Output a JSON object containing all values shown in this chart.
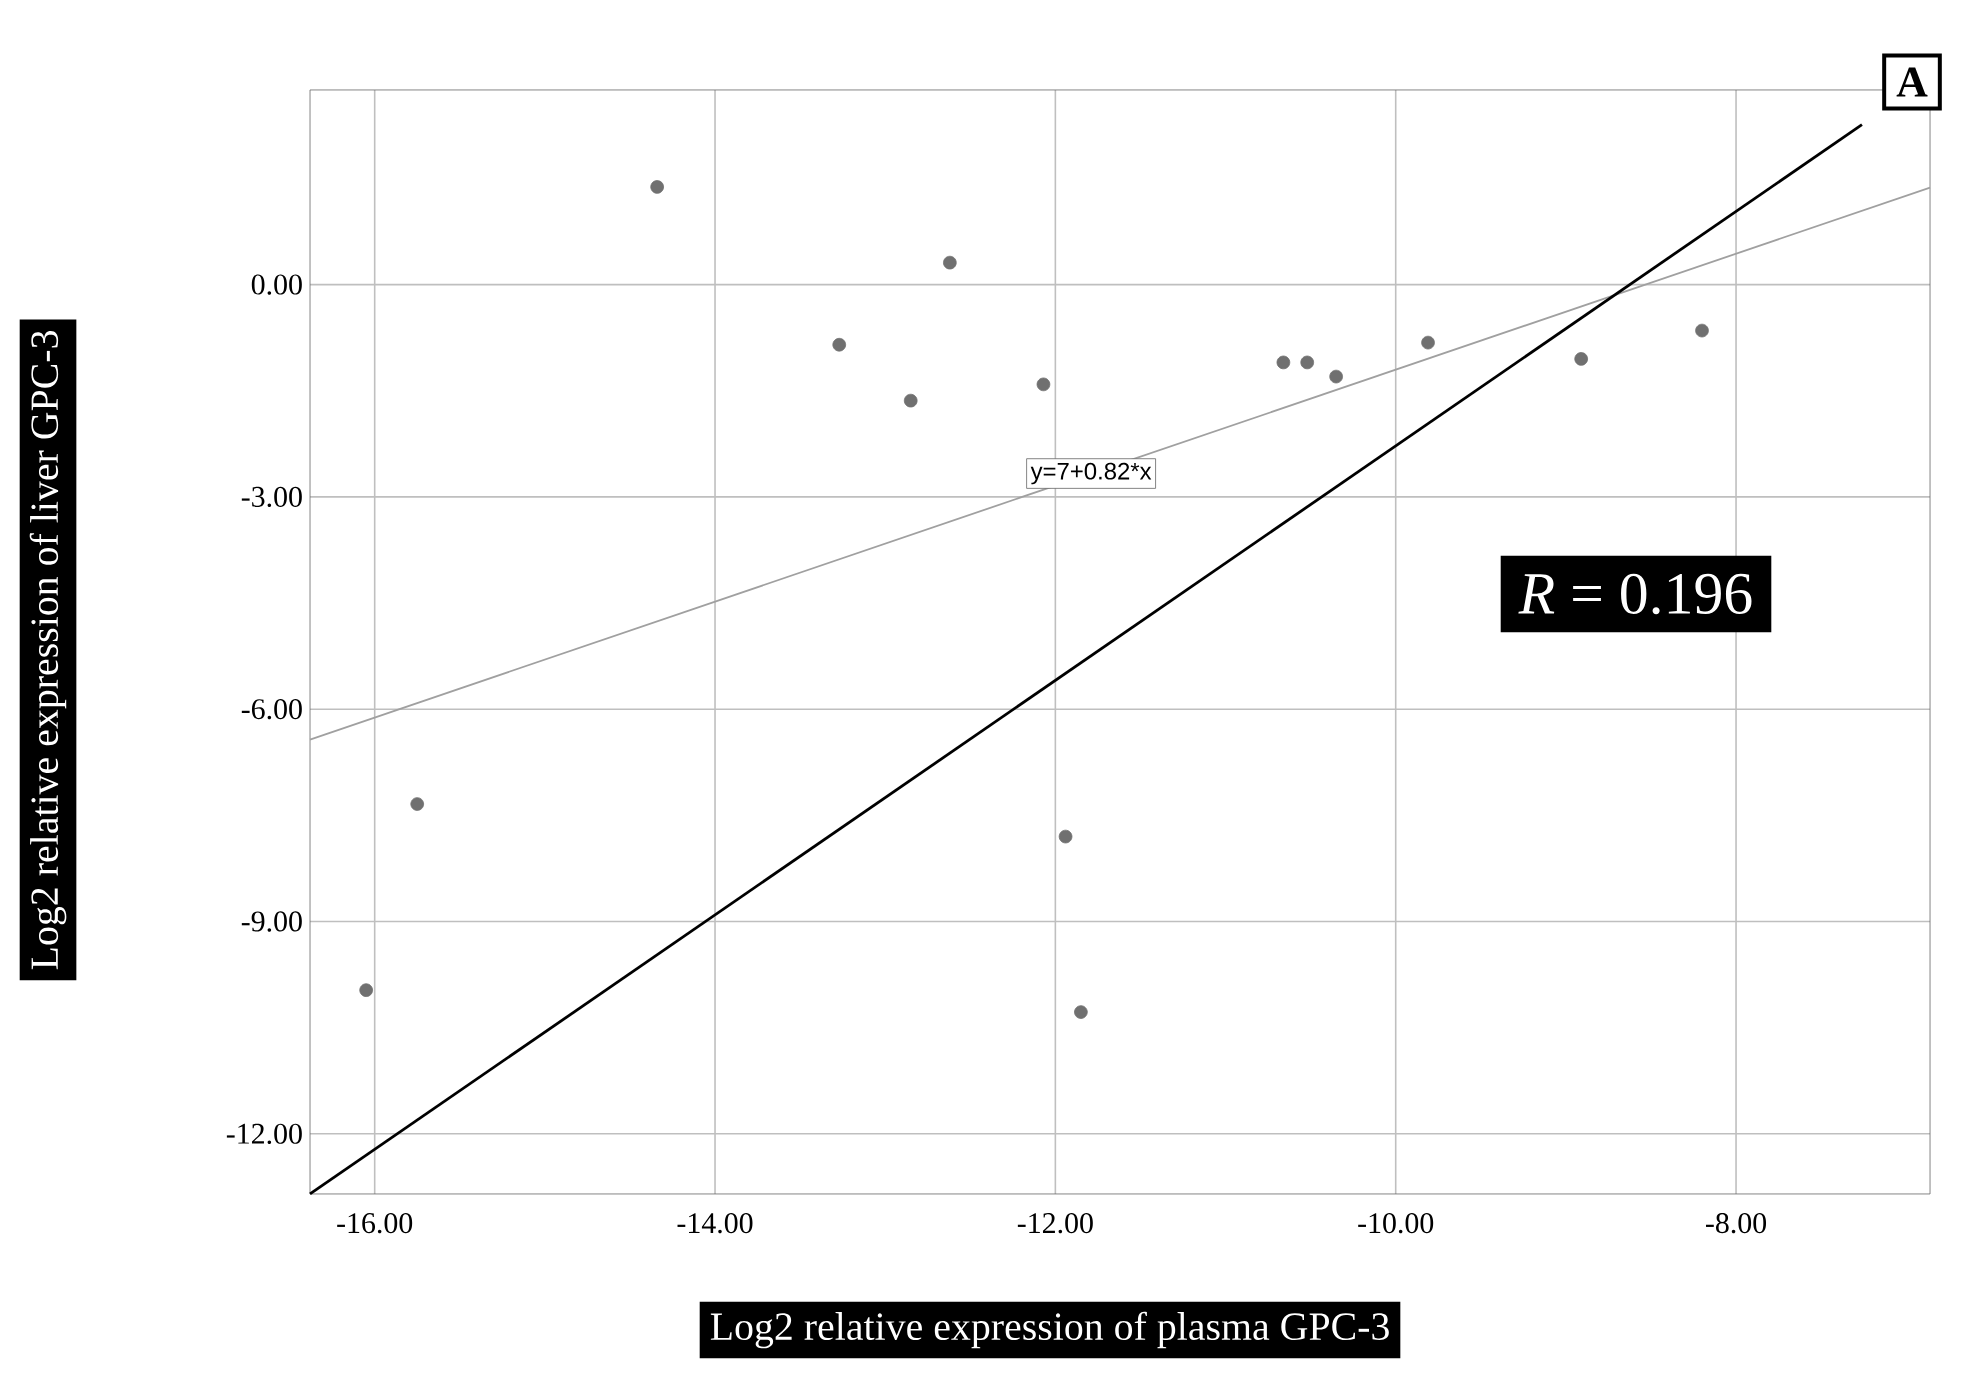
{
  "chart_data": {
    "type": "scatter",
    "xlabel": "Log2 relative expression of plasma GPC-3",
    "ylabel": "Log2 relative expression of liver GPC-3",
    "xlim": [
      -16.38,
      -6.86
    ],
    "ylim": [
      -12.85,
      2.75
    ],
    "xticks": [
      {
        "value": -16,
        "label": "-16.00"
      },
      {
        "value": -14,
        "label": "-14.00"
      },
      {
        "value": -12,
        "label": "-12.00"
      },
      {
        "value": -10,
        "label": "-10.00"
      },
      {
        "value": -8,
        "label": "-8.00"
      }
    ],
    "yticks": [
      {
        "value": -12,
        "label": "-12.00"
      },
      {
        "value": -9,
        "label": "-9.00"
      },
      {
        "value": -6,
        "label": "-6.00"
      },
      {
        "value": -3,
        "label": "-3.00"
      },
      {
        "value": 0,
        "label": "0.00"
      }
    ],
    "grid": true,
    "series": [
      {
        "marker": "circle",
        "color": "#707070",
        "x": [
          -14.34,
          -12.62,
          -13.27,
          -12.85,
          -12.07,
          -10.66,
          -10.52,
          -10.35,
          -9.81,
          -8.91,
          -8.2,
          -15.75,
          -16.05,
          -11.94,
          -11.85
        ],
        "values": [
          1.38,
          0.31,
          -0.85,
          -1.64,
          -1.41,
          -1.1,
          -1.1,
          -1.3,
          -0.82,
          -1.05,
          -0.65,
          -7.34,
          -9.97,
          -7.8,
          -10.28
        ]
      },
      {
        "type": "line",
        "marker": "none",
        "color": "#a0a0a0",
        "x": [
          -16.38,
          -6.86
        ],
        "values": [
          -6.43,
          1.37
        ]
      },
      {
        "type": "line",
        "marker": "none",
        "color": "#000000",
        "x": [
          -16.38,
          -7.26
        ],
        "values": [
          -12.85,
          2.26
        ]
      }
    ],
    "annotations": [
      "A",
      "*R* = 0.196",
      {
        "text": "y=7+0.82*x",
        "x": -11.79,
        "y": -2.67
      }
    ]
  }
}
